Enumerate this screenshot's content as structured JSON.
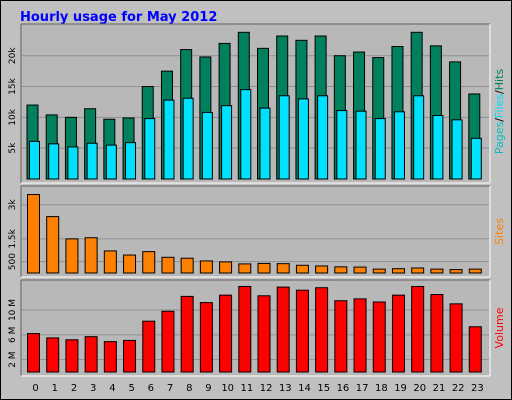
{
  "title": "Hourly usage for May 2012",
  "colors": {
    "background": "#c0c0c0",
    "plot_bg": "#b8b8b8",
    "grid": "#909090",
    "title": "#0000ff",
    "hits": "#00805c",
    "files": "#00e0ff",
    "pages": "#00c0c0",
    "sites": "#ff8000",
    "volume": "#ff0000"
  },
  "chart_data": [
    {
      "type": "bar",
      "name": "hits-files-pages",
      "categories": [
        "0",
        "1",
        "2",
        "3",
        "4",
        "5",
        "6",
        "7",
        "8",
        "9",
        "10",
        "11",
        "12",
        "13",
        "14",
        "15",
        "16",
        "17",
        "18",
        "19",
        "20",
        "21",
        "22",
        "23"
      ],
      "series": [
        {
          "name": "Hits",
          "values": [
            12000,
            10400,
            10000,
            11400,
            9700,
            9900,
            15000,
            17500,
            21000,
            19800,
            22000,
            23800,
            21200,
            23200,
            22500,
            23200,
            20000,
            20600,
            19700,
            21500,
            23800,
            21600,
            19000,
            13800
          ]
        },
        {
          "name": "Files",
          "values": [
            6100,
            5700,
            5200,
            5800,
            5500,
            5900,
            9800,
            12800,
            13100,
            10800,
            11900,
            14500,
            11500,
            13500,
            13000,
            13500,
            11100,
            11000,
            9800,
            10900,
            13500,
            10300,
            9600,
            6600
          ]
        },
        {
          "name": "Pages",
          "values": [
            0,
            0,
            0,
            0,
            0,
            0,
            0,
            0,
            0,
            0,
            0,
            0,
            0,
            0,
            0,
            0,
            0,
            0,
            0,
            0,
            0,
            0,
            0,
            0
          ]
        }
      ],
      "yticks": [
        "5k",
        "10k",
        "15k",
        "20k"
      ],
      "ytick_values": [
        5000,
        10000,
        15000,
        20000
      ],
      "ylim": [
        0,
        24500
      ],
      "ylabel_parts": [
        "Pages",
        "/",
        "Files",
        "/",
        "Hits"
      ]
    },
    {
      "type": "bar",
      "name": "sites",
      "categories": [
        "0",
        "1",
        "2",
        "3",
        "4",
        "5",
        "6",
        "7",
        "8",
        "9",
        "10",
        "11",
        "12",
        "13",
        "14",
        "15",
        "16",
        "17",
        "18",
        "19",
        "20",
        "21",
        "22",
        "23"
      ],
      "series": [
        {
          "name": "Sites",
          "values": [
            3450,
            2480,
            1500,
            1550,
            970,
            790,
            940,
            690,
            650,
            530,
            490,
            400,
            420,
            410,
            340,
            310,
            270,
            260,
            170,
            190,
            220,
            170,
            150,
            170
          ]
        }
      ],
      "yticks": [
        "500",
        "1.5k",
        "3k"
      ],
      "ytick_values": [
        500,
        1500,
        3000
      ],
      "ylim": [
        0,
        3650
      ],
      "ylabel": "Sites"
    },
    {
      "type": "bar",
      "name": "volume",
      "categories": [
        "0",
        "1",
        "2",
        "3",
        "4",
        "5",
        "6",
        "7",
        "8",
        "9",
        "10",
        "11",
        "12",
        "13",
        "14",
        "15",
        "16",
        "17",
        "18",
        "19",
        "20",
        "21",
        "22",
        "23"
      ],
      "series": [
        {
          "name": "Volume",
          "values": [
            6200000,
            5500000,
            5200000,
            5700000,
            4900000,
            5100000,
            8200000,
            9800000,
            12200000,
            11200000,
            12400000,
            13800000,
            12300000,
            13700000,
            13200000,
            13600000,
            11500000,
            11800000,
            11300000,
            12400000,
            13800000,
            12500000,
            11000000,
            7300000
          ]
        }
      ],
      "yticks": [
        "2 M",
        "6 M",
        "10 M"
      ],
      "ytick_values": [
        2000000,
        6000000,
        10000000
      ],
      "ylim": [
        0,
        14200000
      ],
      "ylabel": "Volume"
    }
  ]
}
